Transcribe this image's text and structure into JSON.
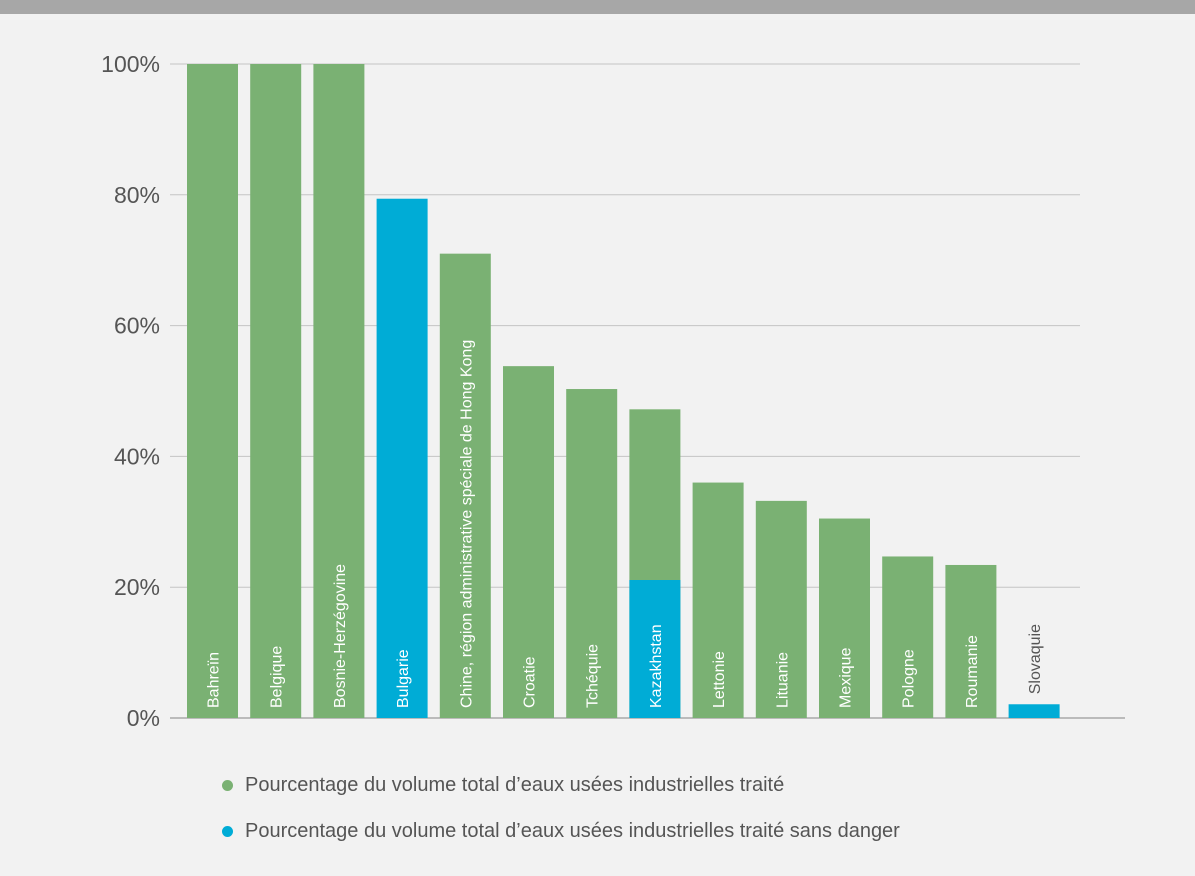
{
  "chart_data": {
    "type": "bar",
    "categories": [
      "Bahreïn",
      "Belgique",
      "Bosnie-Herzégovine",
      "Bulgarie",
      "Chine, région administrative spéciale de Hong Kong",
      "Croatie",
      "Tchéquie",
      "Kazakhstan",
      "Lettonie",
      "Lituanie",
      "Mexique",
      "Pologne",
      "Roumanie",
      "Slovaquie"
    ],
    "series": [
      {
        "name": "Pourcentage du volume total d’eaux usées industrielles traité",
        "color": "#7ab173",
        "values": [
          100,
          100,
          100,
          null,
          71,
          53.8,
          50.3,
          47.2,
          36,
          33.2,
          30.5,
          24.7,
          23.4,
          null
        ]
      },
      {
        "name": "Pourcentage du volume total d’eaux usées industrielles traité sans danger",
        "color": "#00acd6",
        "values": [
          null,
          null,
          null,
          79.4,
          null,
          null,
          null,
          21.1,
          null,
          null,
          null,
          null,
          null,
          2.1
        ]
      }
    ],
    "yticks": [
      "0%",
      "20%",
      "40%",
      "60%",
      "80%",
      "100%"
    ],
    "ylim": [
      0,
      100
    ],
    "grid": true,
    "legend_position": "bottom"
  }
}
